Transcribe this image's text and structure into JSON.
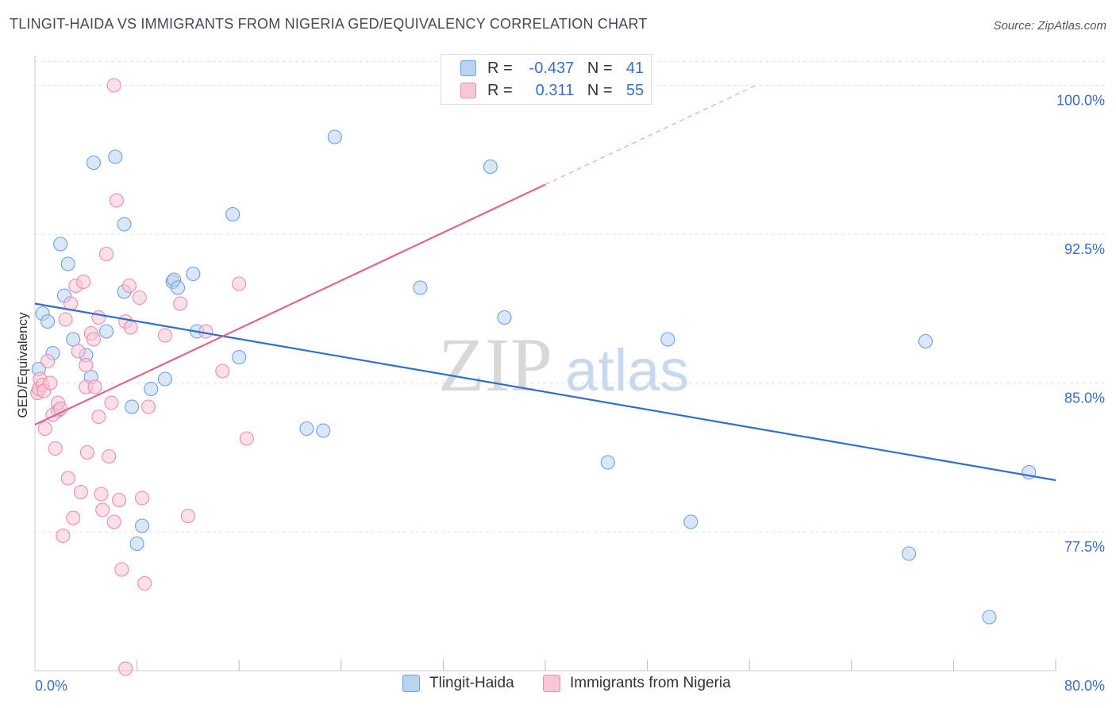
{
  "title": "TLINGIT-HAIDA VS IMMIGRANTS FROM NIGERIA GED/EQUIVALENCY CORRELATION CHART",
  "source": "Source: ZipAtlas.com",
  "watermark": {
    "zip": "ZIP",
    "atlas": "atlas"
  },
  "legend": {
    "rows": [
      {
        "r_label": "R =",
        "r_value": "-0.437",
        "n_label": "N =",
        "n_value": "41"
      },
      {
        "r_label": "R =",
        "r_value": " 0.311",
        "n_label": "N =",
        "n_value": "55"
      }
    ]
  },
  "chart_data": {
    "type": "scatter",
    "xlabel": "",
    "ylabel": "GED/Equivalency",
    "xlim": [
      0,
      80
    ],
    "ylim": [
      70.5,
      101.5
    ],
    "x_tick_labels": [
      {
        "value": 0,
        "label": "0.0%"
      },
      {
        "value": 80,
        "label": "80.0%"
      }
    ],
    "y_tick_labels": [
      {
        "value": 100,
        "label": "100.0%"
      },
      {
        "value": 92.5,
        "label": "92.5%"
      },
      {
        "value": 85,
        "label": "85.0%"
      },
      {
        "value": 77.5,
        "label": "77.5%"
      }
    ],
    "legend_position": "top-center",
    "series": [
      {
        "name": "Tlingit-Haida",
        "color": "#6aa0e6",
        "fill": "#b9d3f3",
        "line_color": "#2f6fcf",
        "trend": {
          "x0": 0,
          "y0": 89.0,
          "x1": 80,
          "y1": 80.1
        },
        "points": [
          [
            0.3,
            85.7
          ],
          [
            0.6,
            88.5
          ],
          [
            1.0,
            88.1
          ],
          [
            1.4,
            86.5
          ],
          [
            1.8,
            83.6
          ],
          [
            2.0,
            92.0
          ],
          [
            2.6,
            91.0
          ],
          [
            2.3,
            89.4
          ],
          [
            3.0,
            87.2
          ],
          [
            4.0,
            86.4
          ],
          [
            4.4,
            85.3
          ],
          [
            4.6,
            96.1
          ],
          [
            5.6,
            87.6
          ],
          [
            6.3,
            96.4
          ],
          [
            7.0,
            89.6
          ],
          [
            7.0,
            93.0
          ],
          [
            7.6,
            83.8
          ],
          [
            8.0,
            76.9
          ],
          [
            8.4,
            77.8
          ],
          [
            9.1,
            84.7
          ],
          [
            10.2,
            85.2
          ],
          [
            10.8,
            90.1
          ],
          [
            10.9,
            90.2
          ],
          [
            11.2,
            89.8
          ],
          [
            12.4,
            90.5
          ],
          [
            12.7,
            87.6
          ],
          [
            15.5,
            93.5
          ],
          [
            16.0,
            86.3
          ],
          [
            21.3,
            82.7
          ],
          [
            22.6,
            82.6
          ],
          [
            23.5,
            97.4
          ],
          [
            30.2,
            89.8
          ],
          [
            35.7,
            95.9
          ],
          [
            36.8,
            88.3
          ],
          [
            44.9,
            81.0
          ],
          [
            49.6,
            87.2
          ],
          [
            51.4,
            78.0
          ],
          [
            68.5,
            76.4
          ],
          [
            69.8,
            87.1
          ],
          [
            74.8,
            73.2
          ],
          [
            77.9,
            80.5
          ]
        ]
      },
      {
        "name": "Immigrants from Nigeria",
        "color": "#f08aaa",
        "fill": "#f9c6d6",
        "line_color": "#e0648f",
        "trend": {
          "x0": 0,
          "y0": 82.9,
          "x1": 40,
          "y1": 95.0
        },
        "trend_dashed_to": {
          "x": 56.5,
          "y": 100.0
        },
        "points": [
          [
            0.2,
            84.5
          ],
          [
            0.3,
            84.7
          ],
          [
            0.4,
            85.2
          ],
          [
            0.6,
            84.9
          ],
          [
            0.7,
            84.6
          ],
          [
            0.8,
            82.7
          ],
          [
            1.0,
            86.1
          ],
          [
            1.2,
            85.0
          ],
          [
            1.4,
            83.4
          ],
          [
            1.6,
            81.7
          ],
          [
            1.8,
            84.0
          ],
          [
            2.0,
            83.7
          ],
          [
            2.2,
            77.3
          ],
          [
            2.4,
            88.2
          ],
          [
            2.6,
            80.2
          ],
          [
            2.8,
            89.0
          ],
          [
            3.0,
            78.2
          ],
          [
            3.2,
            89.9
          ],
          [
            3.4,
            86.6
          ],
          [
            3.6,
            79.5
          ],
          [
            3.8,
            90.1
          ],
          [
            4.0,
            85.9
          ],
          [
            4.0,
            84.8
          ],
          [
            4.1,
            81.5
          ],
          [
            4.4,
            87.5
          ],
          [
            4.6,
            87.2
          ],
          [
            4.7,
            84.8
          ],
          [
            5.0,
            88.3
          ],
          [
            5.0,
            83.3
          ],
          [
            5.2,
            79.4
          ],
          [
            5.3,
            78.6
          ],
          [
            5.6,
            91.5
          ],
          [
            5.8,
            81.3
          ],
          [
            6.0,
            84.0
          ],
          [
            6.2,
            100.0
          ],
          [
            6.2,
            78.0
          ],
          [
            6.4,
            94.2
          ],
          [
            6.6,
            79.1
          ],
          [
            6.8,
            75.6
          ],
          [
            7.1,
            88.1
          ],
          [
            7.1,
            70.6
          ],
          [
            7.4,
            89.9
          ],
          [
            7.5,
            87.8
          ],
          [
            8.2,
            89.3
          ],
          [
            8.4,
            79.2
          ],
          [
            8.6,
            74.9
          ],
          [
            8.9,
            83.8
          ],
          [
            10.2,
            87.4
          ],
          [
            11.4,
            89.0
          ],
          [
            12.0,
            78.3
          ],
          [
            13.4,
            87.6
          ],
          [
            14.7,
            85.6
          ],
          [
            16.0,
            90.0
          ],
          [
            16.6,
            82.2
          ],
          [
            35.1,
            100.7
          ]
        ]
      }
    ]
  }
}
